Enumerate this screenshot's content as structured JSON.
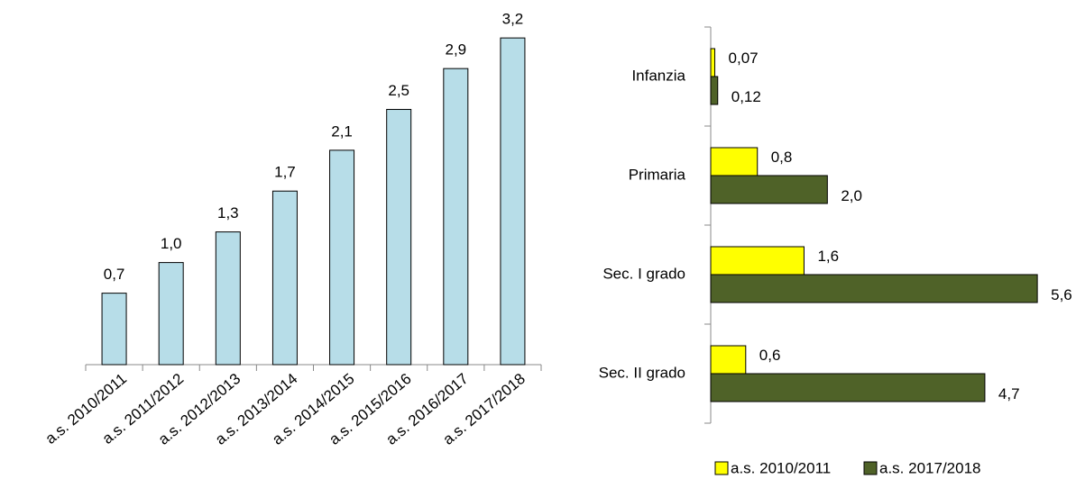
{
  "chart_data": [
    {
      "type": "bar",
      "categories": [
        "a.s. 2010/2011",
        "a.s. 2011/2012",
        "a.s. 2012/2013",
        "a.s. 2013/2014",
        "a.s. 2014/2015",
        "a.s. 2015/2016",
        "a.s. 2016/2017",
        "a.s. 2017/2018"
      ],
      "values": [
        0.7,
        1.0,
        1.3,
        1.7,
        2.1,
        2.5,
        2.9,
        3.2
      ],
      "value_labels": [
        "0,7",
        "1,0",
        "1,3",
        "1,7",
        "2,1",
        "2,5",
        "2,9",
        "3,2"
      ],
      "color": "#b7dde8",
      "ylim": [
        0,
        3.3
      ]
    },
    {
      "type": "hbar",
      "categories": [
        "Infanzia",
        "Primaria",
        "Sec. I grado",
        "Sec. II grado"
      ],
      "series": [
        {
          "name": "a.s. 2010/2011",
          "color": "#ffff00",
          "values": [
            0.07,
            0.8,
            1.6,
            0.6
          ],
          "value_labels": [
            "0,07",
            "0,8",
            "1,6",
            "0,6"
          ]
        },
        {
          "name": "a.s. 2017/2018",
          "color": "#4f6228",
          "values": [
            0.12,
            2.0,
            5.6,
            4.7
          ],
          "value_labels": [
            "0,12",
            "2,0",
            "5,6",
            "4,7"
          ]
        }
      ],
      "xlim": [
        0,
        6
      ],
      "legend": "bottom"
    }
  ]
}
